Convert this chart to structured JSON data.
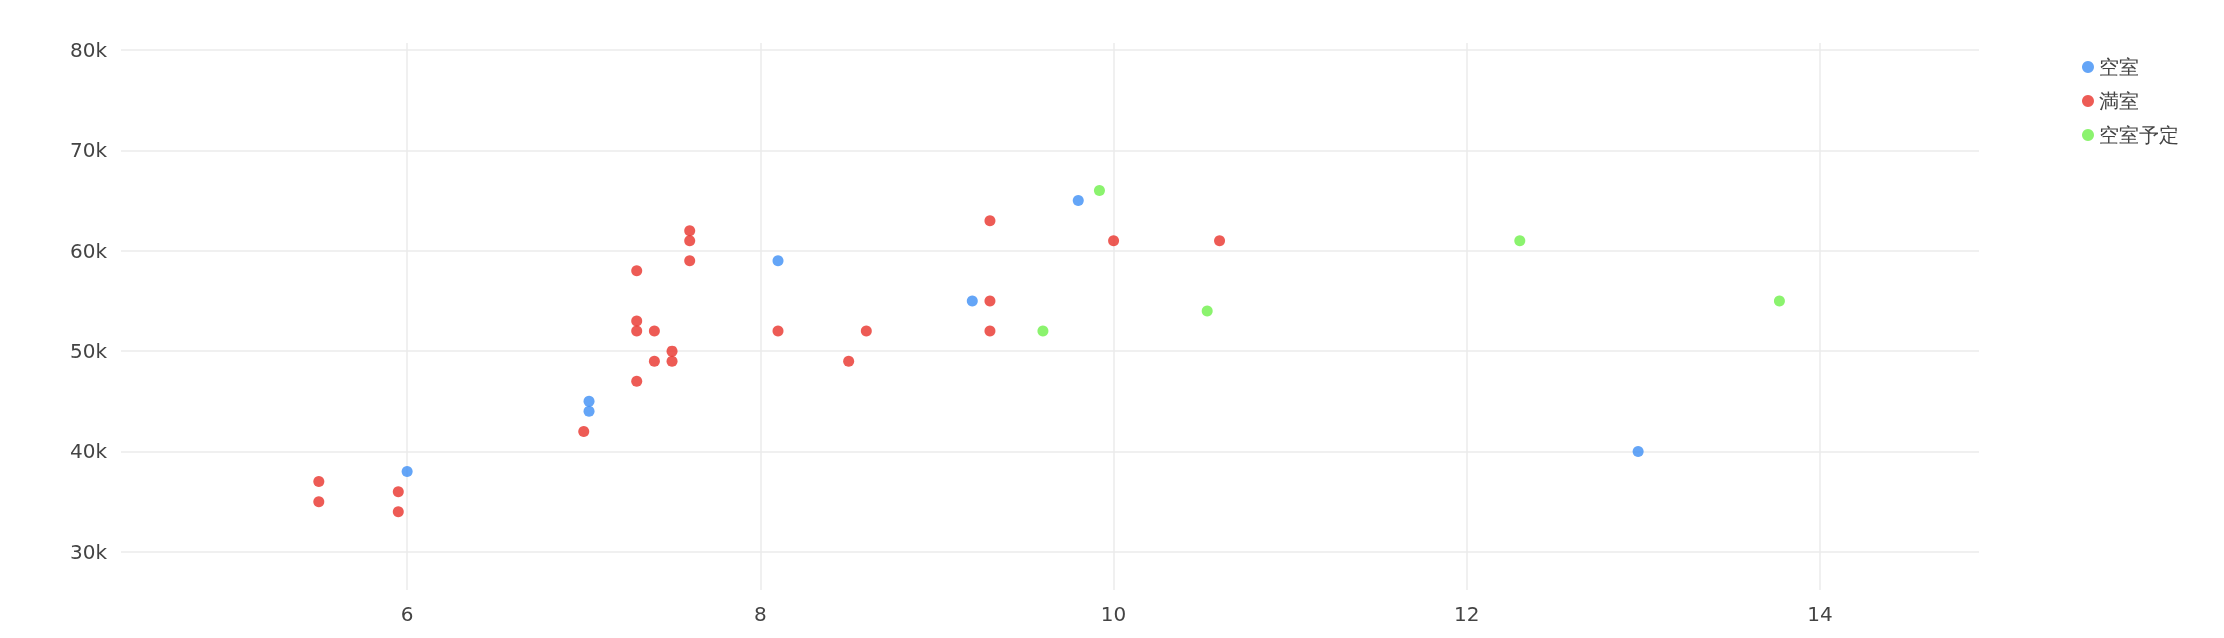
{
  "chart_data": {
    "type": "scatter",
    "series": [
      {
        "name": "空室",
        "color": "#3d8ef5",
        "x": [
          6,
          7.03,
          7.03,
          8.1,
          9.2,
          9.8,
          12.97
        ],
        "values": [
          38000,
          45000,
          44000,
          59000,
          55000,
          65000,
          40000
        ]
      },
      {
        "name": "満室",
        "color": "#e8322a",
        "x": [
          5.5,
          5.5,
          5.95,
          5.95,
          7.0,
          7.3,
          7.3,
          7.3,
          7.3,
          7.4,
          7.4,
          7.5,
          7.5,
          7.6,
          7.6,
          7.6,
          8.1,
          8.5,
          8.6,
          9.3,
          9.3,
          9.3,
          10,
          10.6
        ],
        "values": [
          37000,
          35000,
          36000,
          34000,
          42000,
          58000,
          53000,
          52000,
          47000,
          52000,
          49000,
          50000,
          49000,
          62000,
          61000,
          59000,
          52000,
          49000,
          52000,
          63000,
          55000,
          52000,
          61000,
          61000
        ]
      },
      {
        "name": "空室予定",
        "color": "#6ef04a",
        "x": [
          9.6,
          9.92,
          10.53,
          12.3,
          13.77
        ],
        "values": [
          52000,
          66000,
          54000,
          61000,
          55000
        ]
      }
    ],
    "xlim": [
      4.38,
      14.9
    ],
    "xticks": [
      6,
      8,
      10,
      12,
      14
    ],
    "ylim": [
      26200,
      80700
    ],
    "yticks": [
      {
        "value": 30000,
        "label": "30k"
      },
      {
        "value": 40000,
        "label": "40k"
      },
      {
        "value": 50000,
        "label": "50k"
      },
      {
        "value": 60000,
        "label": "60k"
      },
      {
        "value": 70000,
        "label": "70k"
      },
      {
        "value": 80000,
        "label": "80k"
      }
    ],
    "grid": true,
    "legend": "top right",
    "marker": "circle"
  }
}
